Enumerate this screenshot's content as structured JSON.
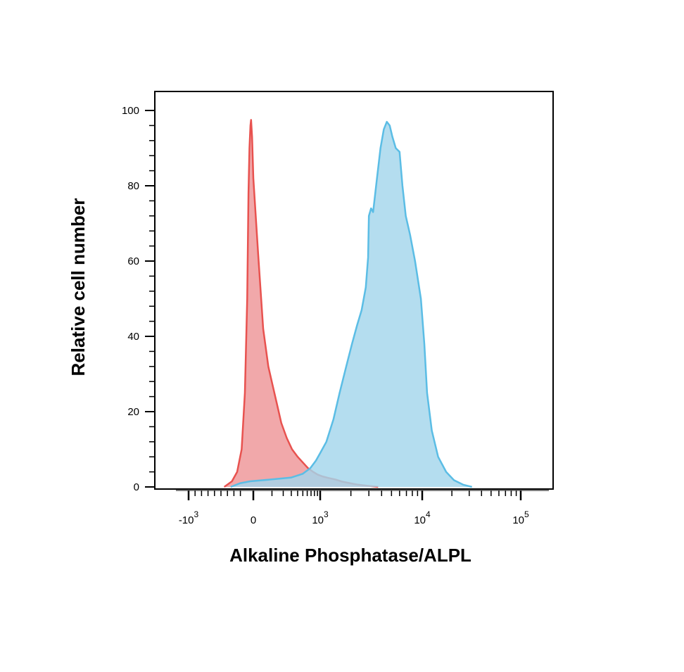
{
  "chart_data": {
    "type": "area",
    "title": "",
    "xlabel": "Alkaline Phosphatase/ALPL",
    "ylabel": "Relative cell number",
    "x_scale": "biexponential",
    "xlim": [
      -2000,
      200000
    ],
    "ylim": [
      0,
      100
    ],
    "y_ticks": [
      0,
      20,
      40,
      60,
      80,
      100
    ],
    "x_ticks": [
      {
        "value": -1000,
        "base": "-10",
        "exp": "3"
      },
      {
        "value": 0,
        "base": "0",
        "exp": ""
      },
      {
        "value": 1000,
        "base": "10",
        "exp": "3"
      },
      {
        "value": 10000,
        "base": "10",
        "exp": "4"
      },
      {
        "value": 100000,
        "base": "10",
        "exp": "5"
      }
    ],
    "grid": false,
    "legend": "none",
    "series": [
      {
        "color": "#e8524f",
        "fill": "#f0a3a5",
        "points": [
          [
            -450,
            0
          ],
          [
            -330,
            1.5
          ],
          [
            -250,
            4
          ],
          [
            -180,
            10
          ],
          [
            -130,
            25
          ],
          [
            -95,
            50
          ],
          [
            -75,
            78
          ],
          [
            -60,
            90
          ],
          [
            -45,
            96
          ],
          [
            -35,
            97.5
          ],
          [
            -20,
            93
          ],
          [
            0,
            82
          ],
          [
            20,
            62
          ],
          [
            45,
            42
          ],
          [
            75,
            32
          ],
          [
            105,
            27
          ],
          [
            140,
            22
          ],
          [
            180,
            17
          ],
          [
            240,
            13
          ],
          [
            310,
            10
          ],
          [
            400,
            8
          ],
          [
            500,
            6.5
          ],
          [
            620,
            5
          ],
          [
            760,
            4
          ],
          [
            900,
            3.3
          ],
          [
            1050,
            2.8
          ],
          [
            1200,
            2.4
          ],
          [
            1400,
            2
          ],
          [
            1650,
            1.4
          ],
          [
            1950,
            1
          ],
          [
            2350,
            0.6
          ],
          [
            2900,
            0.3
          ],
          [
            3700,
            0
          ]
        ]
      },
      {
        "color": "#5bbde5",
        "fill": "#a3d6eb",
        "points": [
          [
            -350,
            0
          ],
          [
            -200,
            1
          ],
          [
            -50,
            1.5
          ],
          [
            100,
            2
          ],
          [
            300,
            2.5
          ],
          [
            500,
            3.5
          ],
          [
            680,
            5
          ],
          [
            850,
            7
          ],
          [
            1000,
            9
          ],
          [
            1150,
            12
          ],
          [
            1350,
            18
          ],
          [
            1550,
            25
          ],
          [
            1800,
            32
          ],
          [
            2050,
            38
          ],
          [
            2300,
            43
          ],
          [
            2550,
            47
          ],
          [
            2800,
            53
          ],
          [
            2950,
            61
          ],
          [
            3000,
            72
          ],
          [
            3150,
            74
          ],
          [
            3300,
            73
          ],
          [
            3600,
            82
          ],
          [
            3900,
            90
          ],
          [
            4200,
            95
          ],
          [
            4500,
            97
          ],
          [
            4800,
            96
          ],
          [
            5100,
            93
          ],
          [
            5500,
            90
          ],
          [
            6000,
            89
          ],
          [
            6400,
            80
          ],
          [
            6900,
            72
          ],
          [
            7600,
            67
          ],
          [
            8500,
            60
          ],
          [
            9700,
            50
          ],
          [
            10500,
            38
          ],
          [
            11200,
            25
          ],
          [
            12500,
            15
          ],
          [
            14500,
            8
          ],
          [
            17500,
            4
          ],
          [
            21000,
            1.8
          ],
          [
            26000,
            0.6
          ],
          [
            32000,
            0
          ]
        ]
      }
    ]
  }
}
